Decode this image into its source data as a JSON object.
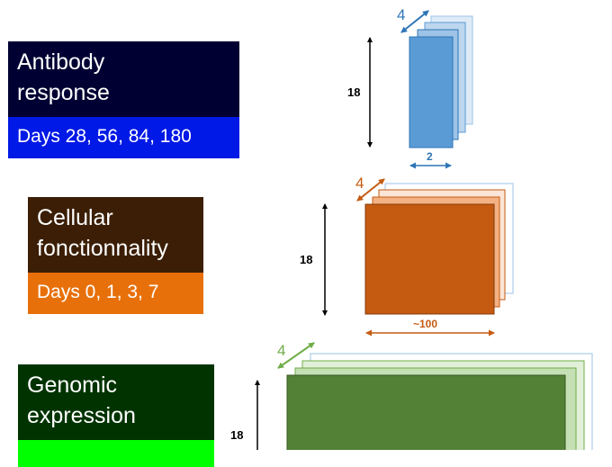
{
  "blocks": [
    {
      "title_lines": [
        "Antibody",
        "response"
      ],
      "subtitle": "Days 28, 56, 84, 180",
      "colors": {
        "title_bg": "#000033",
        "subtitle_bg": "#0019e6",
        "front": "#5b9bd5",
        "layer_fill": [
          "#deebf7",
          "#bdd7ee",
          "#9dc3e6"
        ],
        "layer_stroke": [
          "#9dc3e6",
          "#5b9bd5",
          "#2e75b6"
        ],
        "accent": "#2e75b6"
      },
      "dims": {
        "depth": "4",
        "height": "18",
        "width": "2"
      }
    },
    {
      "title_lines": [
        "Cellular",
        "fonctionnality"
      ],
      "subtitle": "Days 0, 1, 3, 7",
      "colors": {
        "title_bg": "#3b1e05",
        "subtitle_bg": "#e8700a",
        "front": "#c55a11",
        "layer_fill": [
          "#ffffff",
          "#fbe5d6",
          "#f4b183"
        ],
        "layer_stroke": [
          "#9dc3e6",
          "#c55a11",
          "#c55a11"
        ],
        "accent": "#c55a11"
      },
      "dims": {
        "depth": "4",
        "height": "18",
        "width": "~100"
      }
    },
    {
      "title_lines": [
        "Genomic",
        "expression"
      ],
      "subtitle": "",
      "colors": {
        "title_bg": "#003300",
        "subtitle_bg": "#00ff00",
        "front": "#538135",
        "layer_fill": [
          "#ffffff",
          "#e2f0d9",
          "#c5e0b4"
        ],
        "layer_stroke": [
          "#9dc3e6",
          "#70ad47",
          "#70ad47"
        ],
        "accent": "#70ad47"
      },
      "dims": {
        "depth": "4",
        "height": "18",
        "width": ""
      }
    }
  ]
}
